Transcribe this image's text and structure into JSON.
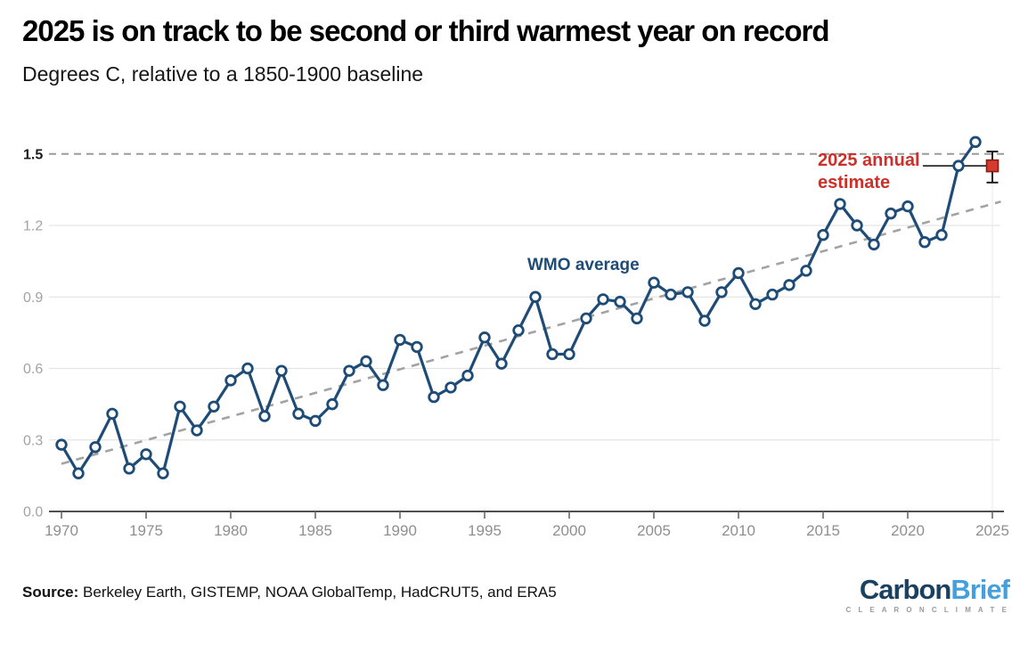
{
  "header": {
    "title": "2025 is on track to be second or third warmest year on record",
    "subtitle": "Degrees C, relative to a 1850-1900 baseline"
  },
  "annotations": {
    "wmo": "WMO average",
    "estimate_line1": "2025 annual",
    "estimate_line2": "estimate"
  },
  "chart_data": {
    "type": "line",
    "title": "2025 is on track to be second or third warmest year on record",
    "subtitle": "Degrees C, relative to a 1850-1900 baseline",
    "ylim": [
      0,
      1.6
    ],
    "ytick_labels": [
      "0.0",
      "0.3",
      "0.6",
      "0.9",
      "1.2",
      "1.5"
    ],
    "yticks": [
      0.0,
      0.3,
      0.6,
      0.9,
      1.2,
      1.5
    ],
    "xticks": [
      1970,
      1975,
      1980,
      1985,
      1990,
      1995,
      2000,
      2005,
      2010,
      2015,
      2020,
      2025
    ],
    "grid": "horizontal",
    "legend_position": "none",
    "series": [
      {
        "name": "WMO average",
        "x": [
          1970,
          1971,
          1972,
          1973,
          1974,
          1975,
          1976,
          1977,
          1978,
          1979,
          1980,
          1981,
          1982,
          1983,
          1984,
          1985,
          1986,
          1987,
          1988,
          1989,
          1990,
          1991,
          1992,
          1993,
          1994,
          1995,
          1996,
          1997,
          1998,
          1999,
          2000,
          2001,
          2002,
          2003,
          2004,
          2005,
          2006,
          2007,
          2008,
          2009,
          2010,
          2011,
          2012,
          2013,
          2014,
          2015,
          2016,
          2017,
          2018,
          2019,
          2020,
          2021,
          2022,
          2023,
          2024
        ],
        "values": [
          0.28,
          0.16,
          0.27,
          0.41,
          0.18,
          0.24,
          0.16,
          0.44,
          0.34,
          0.44,
          0.55,
          0.6,
          0.4,
          0.59,
          0.41,
          0.38,
          0.45,
          0.59,
          0.63,
          0.53,
          0.72,
          0.69,
          0.48,
          0.52,
          0.57,
          0.73,
          0.62,
          0.76,
          0.9,
          0.66,
          0.66,
          0.81,
          0.89,
          0.88,
          0.81,
          0.96,
          0.91,
          0.92,
          0.8,
          0.92,
          1.0,
          0.87,
          0.91,
          0.95,
          1.01,
          1.16,
          1.29,
          1.2,
          1.12,
          1.25,
          1.28,
          1.13,
          1.16,
          1.45,
          1.55
        ]
      }
    ],
    "trend_line": {
      "style": "dashed",
      "x": [
        1970,
        2025.5
      ],
      "values": [
        0.2,
        1.3
      ]
    },
    "reference_line": {
      "value": 1.5,
      "style": "dashed"
    },
    "estimate_2025": {
      "label": "2025 annual estimate",
      "year": 2025,
      "value": 1.45,
      "upper": 1.51,
      "lower": 1.38
    }
  },
  "footer": {
    "source_label": "Source:",
    "source_text": " Berkeley Earth, GISTEMP, NOAA GlobalTemp, HadCRUT5, and ERA5"
  },
  "logo": {
    "part1": "Carbon",
    "part2": "Brief",
    "tagline": "C L E A R   O N   C L I M A T E"
  },
  "colors": {
    "series_line": "#1e4c77",
    "marker_fill": "#ffffff",
    "trend_line": "#a3a3a3",
    "reference_line": "#9b9b9b",
    "gridline": "#e5e5e5",
    "axis": "#4f4f4f",
    "tick": "#6a6a6a",
    "xtick_label": "#8f8f8f",
    "ytick_label": "#a3a3a3",
    "ytick_label_emph": "#1a1a1a",
    "estimate_fill": "#d63b2f",
    "estimate_border": "#8b1a10",
    "error_bar": "#1f1f1f",
    "leader_line": "#2b2b2b",
    "annotation_red": "#ce2f28",
    "annotation_navy": "#1e4c77",
    "logo_carbon": "#1b4161",
    "logo_brief": "#44a0dc",
    "logo_tagline": "#9a9a9a"
  }
}
